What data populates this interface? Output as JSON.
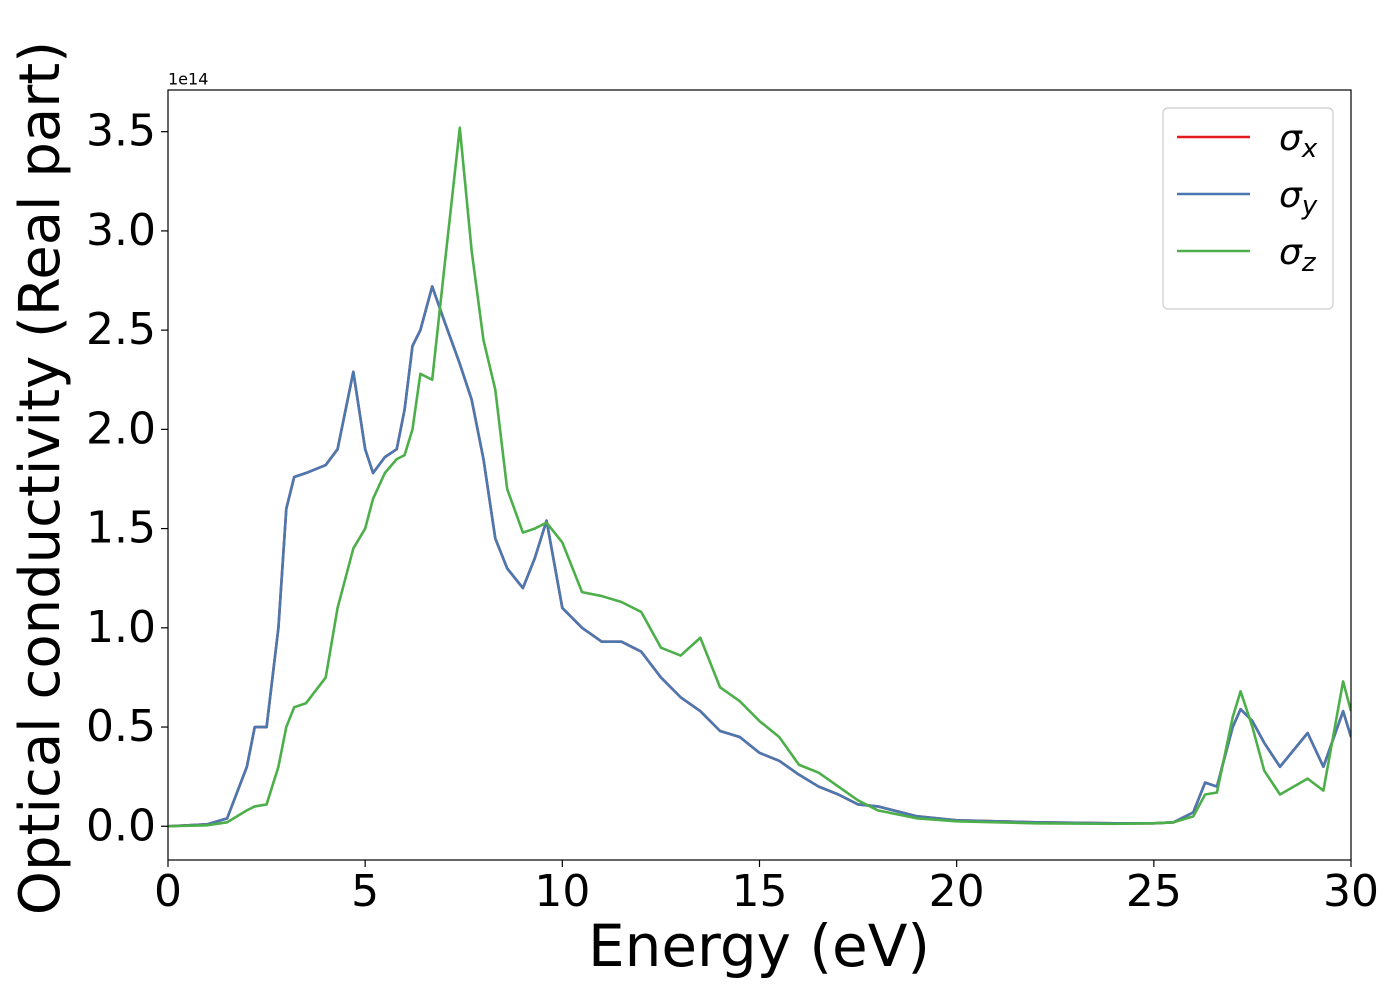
{
  "chart_data": {
    "type": "line",
    "xlabel": "Energy (eV)",
    "ylabel": "Optical conductivity (Real part)",
    "y_offset_text": "1e14",
    "x": [
      0,
      1,
      1.5,
      2,
      2.2,
      2.5,
      2.8,
      3,
      3.2,
      3.5,
      4,
      4.3,
      4.7,
      5,
      5.2,
      5.5,
      5.8,
      6,
      6.2,
      6.4,
      6.7,
      7,
      7.4,
      7.7,
      8,
      8.3,
      8.6,
      9,
      9.3,
      9.6,
      10,
      10.5,
      11,
      11.5,
      12,
      12.5,
      13,
      13.5,
      14,
      14.5,
      15,
      15.5,
      16,
      16.5,
      17,
      17.5,
      18,
      19,
      20,
      22,
      24,
      25,
      25.5,
      26,
      26.3,
      26.6,
      27,
      27.2,
      27.5,
      27.8,
      28.2,
      28.9,
      29.3,
      29.8,
      30
    ],
    "series": [
      {
        "name": "σx",
        "color": "#e41a1c",
        "values": [
          0,
          0.01,
          0.04,
          0.3,
          0.5,
          0.5,
          1.0,
          1.6,
          1.76,
          1.78,
          1.82,
          1.9,
          2.29,
          1.9,
          1.78,
          1.86,
          1.9,
          2.1,
          2.42,
          2.5,
          2.72,
          2.55,
          2.33,
          2.15,
          1.85,
          1.45,
          1.3,
          1.2,
          1.35,
          1.54,
          1.1,
          1.0,
          0.93,
          0.93,
          0.88,
          0.75,
          0.65,
          0.58,
          0.48,
          0.45,
          0.37,
          0.33,
          0.26,
          0.2,
          0.16,
          0.11,
          0.1,
          0.05,
          0.03,
          0.02,
          0.015,
          0.015,
          0.02,
          0.07,
          0.22,
          0.2,
          0.5,
          0.59,
          0.53,
          0.42,
          0.3,
          0.47,
          0.3,
          0.58,
          0.45
        ]
      },
      {
        "name": "σy",
        "color": "#4a78b0",
        "values": [
          0,
          0.01,
          0.04,
          0.3,
          0.5,
          0.5,
          1.0,
          1.6,
          1.76,
          1.78,
          1.82,
          1.9,
          2.29,
          1.9,
          1.78,
          1.86,
          1.9,
          2.1,
          2.42,
          2.5,
          2.72,
          2.55,
          2.33,
          2.15,
          1.85,
          1.45,
          1.3,
          1.2,
          1.35,
          1.54,
          1.1,
          1.0,
          0.93,
          0.93,
          0.88,
          0.75,
          0.65,
          0.58,
          0.48,
          0.45,
          0.37,
          0.33,
          0.26,
          0.2,
          0.16,
          0.11,
          0.1,
          0.05,
          0.03,
          0.02,
          0.015,
          0.015,
          0.02,
          0.07,
          0.22,
          0.2,
          0.5,
          0.59,
          0.53,
          0.42,
          0.3,
          0.47,
          0.3,
          0.58,
          0.45
        ]
      },
      {
        "name": "σz",
        "color": "#4daf4a",
        "values": [
          0,
          0.005,
          0.02,
          0.08,
          0.1,
          0.11,
          0.3,
          0.5,
          0.6,
          0.62,
          0.75,
          1.1,
          1.4,
          1.5,
          1.65,
          1.78,
          1.85,
          1.87,
          2.0,
          2.28,
          2.25,
          2.8,
          3.52,
          2.9,
          2.45,
          2.2,
          1.7,
          1.48,
          1.5,
          1.53,
          1.43,
          1.18,
          1.16,
          1.13,
          1.08,
          0.9,
          0.86,
          0.95,
          0.7,
          0.63,
          0.53,
          0.45,
          0.31,
          0.27,
          0.2,
          0.13,
          0.08,
          0.04,
          0.025,
          0.015,
          0.012,
          0.015,
          0.02,
          0.05,
          0.16,
          0.17,
          0.55,
          0.68,
          0.5,
          0.28,
          0.16,
          0.24,
          0.18,
          0.73,
          0.58
        ]
      }
    ],
    "xlim": [
      0,
      30
    ],
    "xticks": [
      0,
      5,
      10,
      15,
      20,
      25,
      30
    ],
    "ylim": [
      -0.17,
      3.71
    ],
    "yticks": [
      {
        "value": 0,
        "label": "0.0"
      },
      0.5,
      {
        "value": 1,
        "label": "1.0"
      },
      1.5,
      {
        "value": 2,
        "label": "2.0"
      },
      2.5,
      {
        "value": 3,
        "label": "3.0"
      },
      3.5
    ],
    "grid": false,
    "legend": "upper right"
  }
}
